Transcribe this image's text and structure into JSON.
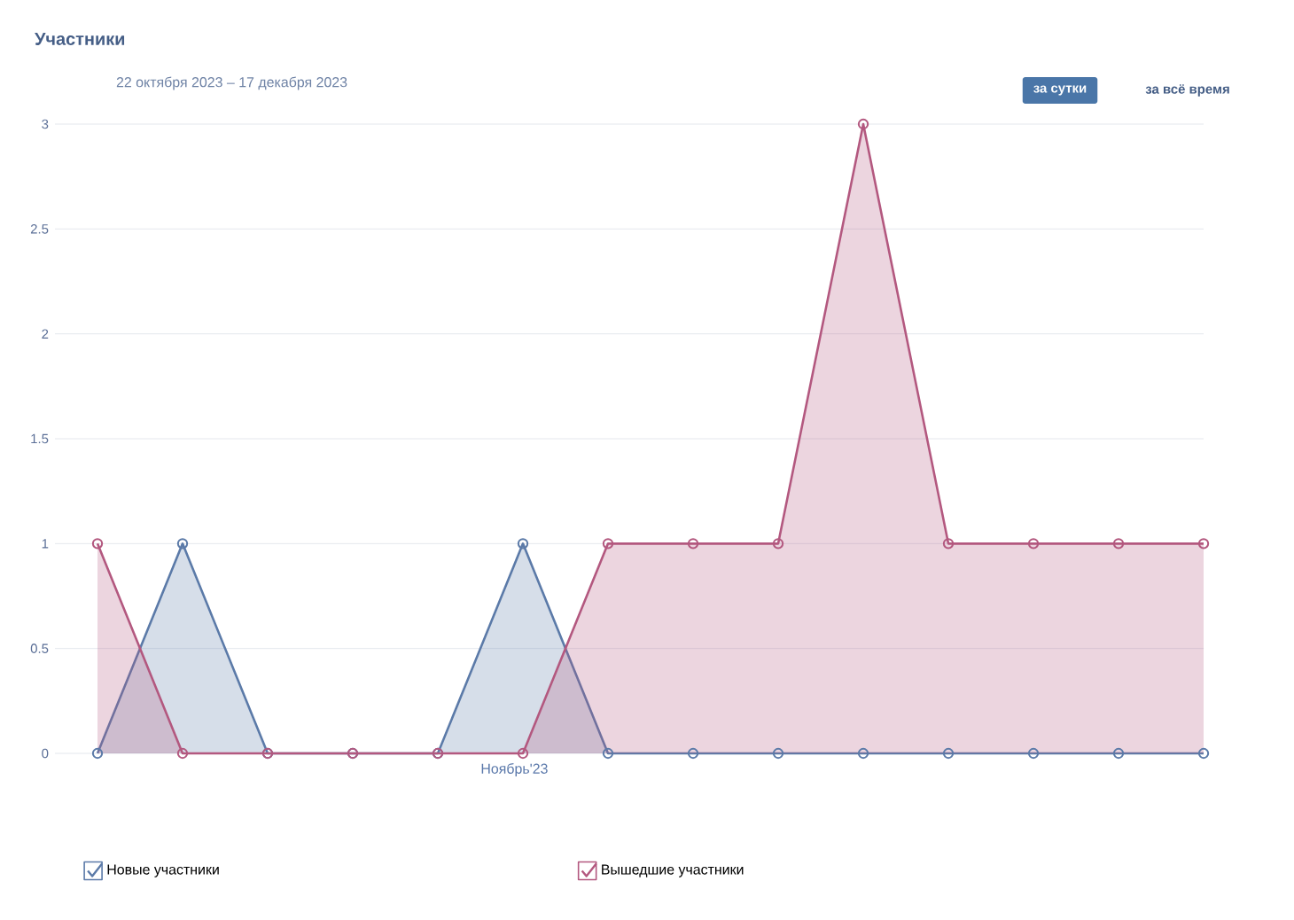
{
  "chart_data": {
    "type": "area",
    "title": "Участники",
    "subtitle": "22 октября 2023 – 17 декабря 2023",
    "xlabel": "Ноябрь'23",
    "annotations": [
      "за сутки",
      "за всё время"
    ],
    "categories": [
      null,
      null,
      null,
      null,
      null,
      null,
      null,
      null,
      null,
      null,
      null,
      null,
      null,
      null
    ],
    "series": [
      {
        "name": "Новые участники",
        "color": "#5b7aa8",
        "values": [
          0,
          1,
          0,
          0,
          0,
          1,
          0,
          0,
          0,
          0,
          0,
          0,
          0,
          0
        ]
      },
      {
        "name": "Вышедшие участники",
        "color": "#b3587f",
        "values": [
          1,
          0,
          0,
          0,
          0,
          0,
          1,
          1,
          1,
          3,
          1,
          1,
          1,
          1
        ]
      }
    ],
    "ylim": [
      0,
      3
    ],
    "yticks": [
      0,
      0.5,
      1,
      1.5,
      2,
      2.5,
      3
    ],
    "tick_labels": "y",
    "grid": "y",
    "legend": "bottom",
    "marker": "circle",
    "line_style": "solid"
  }
}
